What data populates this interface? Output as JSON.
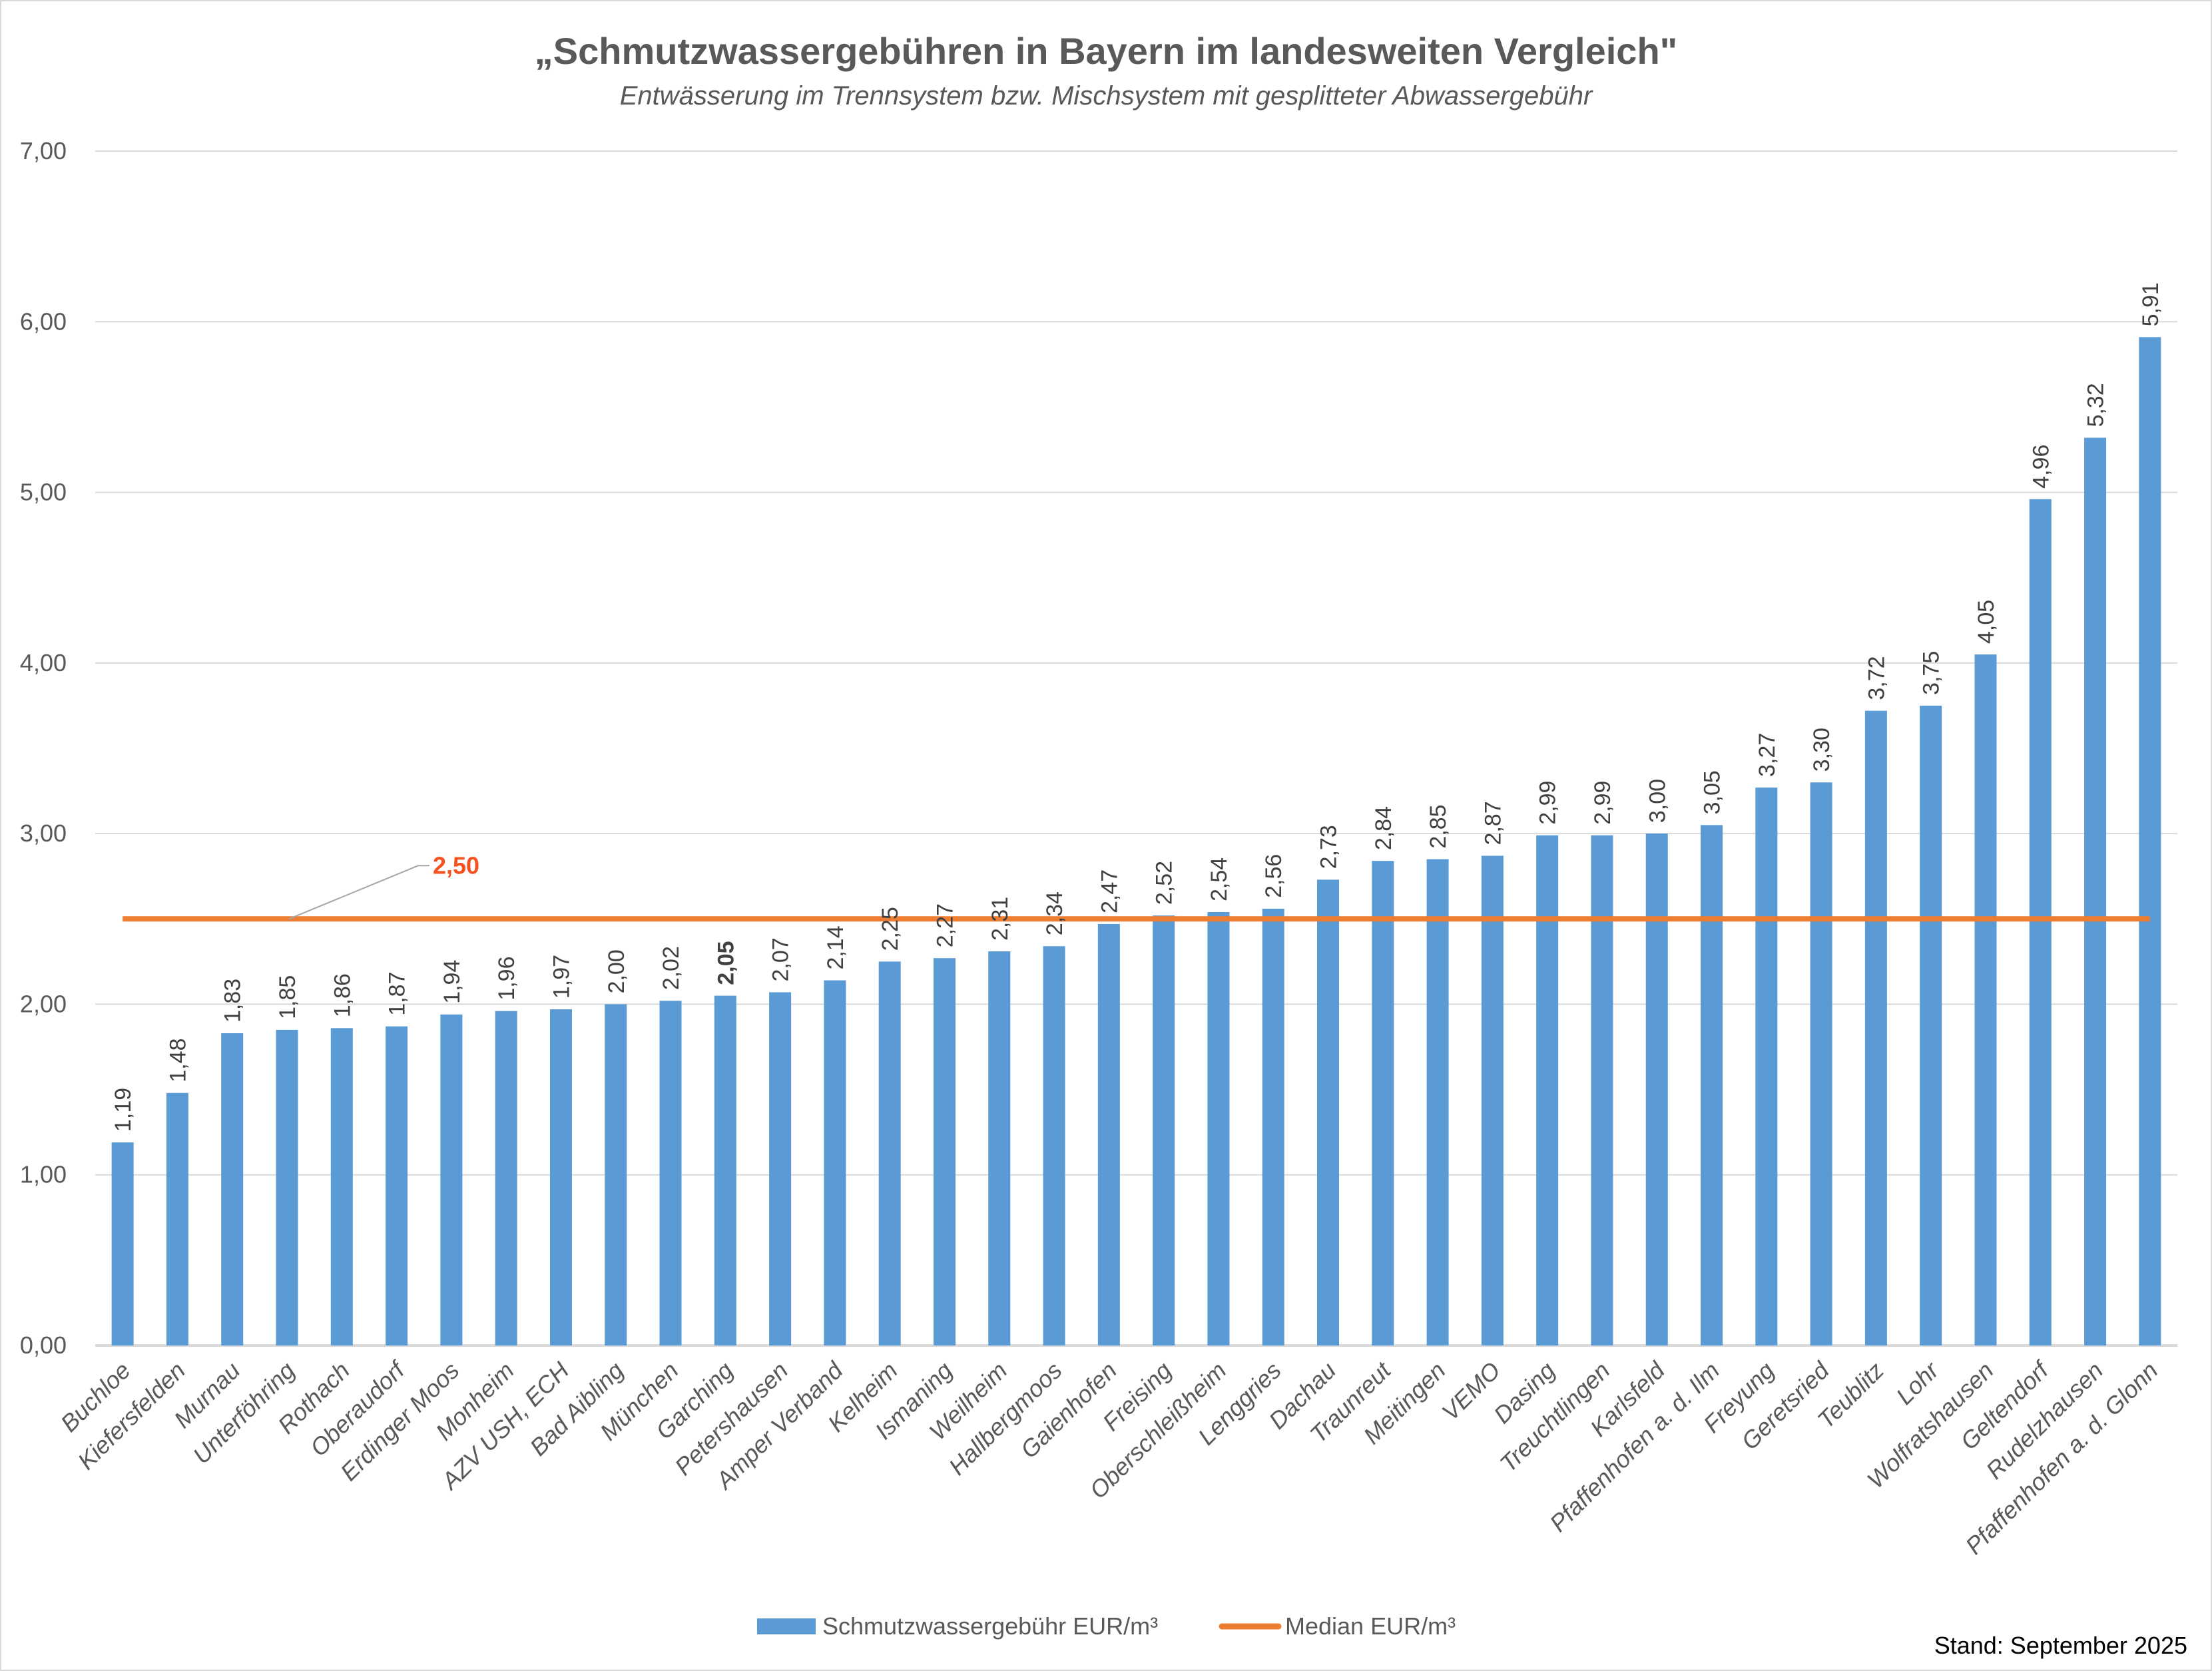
{
  "chart_data": {
    "type": "bar",
    "title": "„Schmutzwassergebühren in Bayern im landesweiten Vergleich\"",
    "subtitle": "Entwässerung im Trennsystem bzw. Mischsystem mit gesplitteter Abwassergebühr",
    "categories": [
      "Buchloe",
      "Kiefersfelden",
      "Murnau",
      "Unterföhring",
      "Rothach",
      "Oberaudorf",
      "Erdinger Moos",
      "Monheim",
      "AZV USH, ECH",
      "Bad Aibling",
      "München",
      "Garching",
      "Petershausen",
      "Amper Verband",
      "Kelheim",
      "Ismaning",
      "Weilheim",
      "Hallbergmoos",
      "Gaienhofen",
      "Freising",
      "Oberschleißheim",
      "Lenggries",
      "Dachau",
      "Traunreut",
      "Meitingen",
      "VEMO",
      "Dasing",
      "Treuchtlingen",
      "Karlsfeld",
      "Pfaffenhofen a. d. Ilm",
      "Freyung",
      "Geretsried",
      "Teublitz",
      "Lohr",
      "Wolfratshausen",
      "Geltendorf",
      "Rudelzhausen",
      "Pfaffenhofen a. d. Glonn"
    ],
    "series": [
      {
        "name": "Schmutzwassergebühr EUR/m³",
        "kind": "bar",
        "color": "#5B9BD5",
        "values": [
          1.19,
          1.48,
          1.83,
          1.85,
          1.86,
          1.87,
          1.94,
          1.96,
          1.97,
          2.0,
          2.02,
          2.05,
          2.07,
          2.14,
          2.25,
          2.27,
          2.31,
          2.34,
          2.47,
          2.52,
          2.54,
          2.56,
          2.73,
          2.84,
          2.85,
          2.87,
          2.99,
          2.99,
          3.0,
          3.05,
          3.27,
          3.3,
          3.72,
          3.75,
          4.05,
          4.96,
          5.32,
          5.91
        ],
        "data_labels": [
          "1,19",
          "1,48",
          "1,83",
          "1,85",
          "1,86",
          "1,87",
          "1,94",
          "1,96",
          "1,97",
          "2,00",
          "2,02",
          "2,05",
          "2,07",
          "2,14",
          "2,25",
          "2,27",
          "2,31",
          "2,34",
          "2,47",
          "2,52",
          "2,54",
          "2,56",
          "2,73",
          "2,84",
          "2,85",
          "2,87",
          "2,99",
          "2,99",
          "3,00",
          "3,05",
          "3,27",
          "3,30",
          "3,72",
          "3,75",
          "4,05",
          "4,96",
          "5,32",
          "5,91"
        ],
        "highlight_category": "Garching",
        "highlight_color": "#FF0000"
      },
      {
        "name": "Median EUR/m³",
        "kind": "line",
        "color": "#ED7D31",
        "value": 2.5,
        "label": "2,50",
        "label_color": "#F4511E"
      }
    ],
    "ylim": [
      0,
      7
    ],
    "yticks": [
      "0,00",
      "1,00",
      "2,00",
      "3,00",
      "4,00",
      "5,00",
      "6,00",
      "7,00"
    ],
    "grid": true,
    "legend": "bottom",
    "xlabel": "",
    "ylabel": ""
  },
  "footer": {
    "stand": "Stand: September 2025"
  }
}
